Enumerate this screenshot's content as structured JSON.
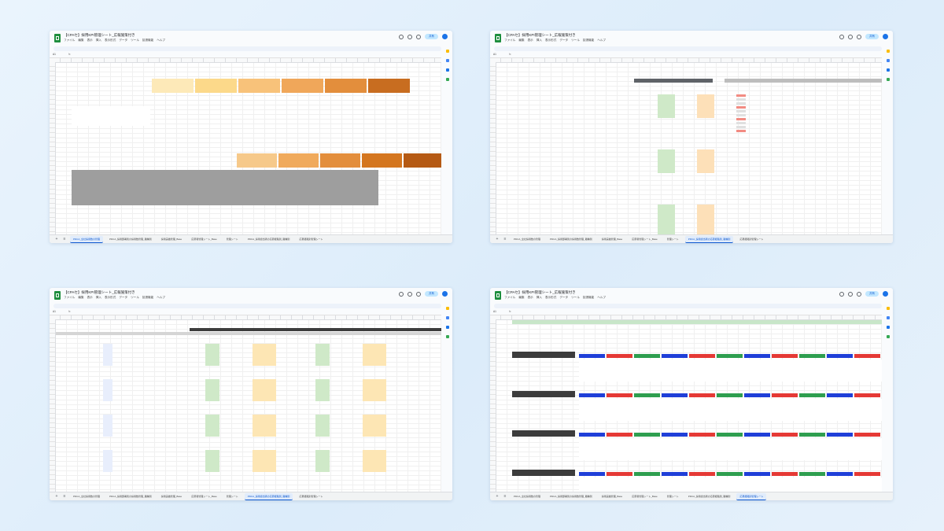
{
  "windows": [
    {
      "title": "【CPAセ】採用KPI管理シート_広報施策付き",
      "active_tab": 0,
      "tabs": [
        "PDCA_全社採用数の管理",
        "PDCA_採用部署別の採用数管理_職種別",
        "採用実績管理_Base",
        "応募者管理シート_Base",
        "管理シート",
        "PDCA_採用担当者の応募経路別_職種別",
        "応募経路別管理シート"
      ]
    },
    {
      "title": "【CPAセ】採用KPI管理シート_広報施策付き",
      "active_tab": 5,
      "tabs": [
        "PDCA_全社採用数の管理",
        "PDCA_採用部署別の採用数管理_職種別",
        "採用実績管理_Base",
        "応募者管理シート_Base",
        "管理シート",
        "PDCA_採用担当者の応募経路別_職種別",
        "応募経路別管理シート"
      ]
    },
    {
      "title": "【CPAセ】採用KPI管理シート_広報施策付き",
      "active_tab": 5,
      "tabs": [
        "PDCA_全社採用数の管理",
        "PDCA_採用部署別の採用数管理_職種別",
        "採用実績管理_Base",
        "応募者管理シート_Base",
        "管理シート",
        "PDCA_採用担当者の応募経路別_職種別",
        "応募経路別管理シート"
      ]
    },
    {
      "title": "【CPAセ】採用KPI管理シート_広報施策付き",
      "active_tab": 6,
      "tabs": [
        "PDCA_全社採用数の管理",
        "PDCA_採用部署別の採用数管理_職種別",
        "採用実績管理_Base",
        "応募者管理シート_Base",
        "管理シート",
        "PDCA_採用担当者の応募経路別_職種別",
        "応募経路別管理シート"
      ]
    }
  ],
  "menu": [
    "ファイル",
    "編集",
    "表示",
    "挿入",
    "表示形式",
    "データ",
    "ツール",
    "拡張機能",
    "ヘルプ"
  ],
  "share_label": "共有",
  "fx_label": "fx",
  "colors": {
    "sheets_green": "#1e8e3e",
    "blue": "#1a73e8",
    "orange": "#e39a35",
    "gray": "#9e9e9e",
    "red": "#e53935",
    "green": "#2e9e4f",
    "dark": "#3c3c3c"
  }
}
